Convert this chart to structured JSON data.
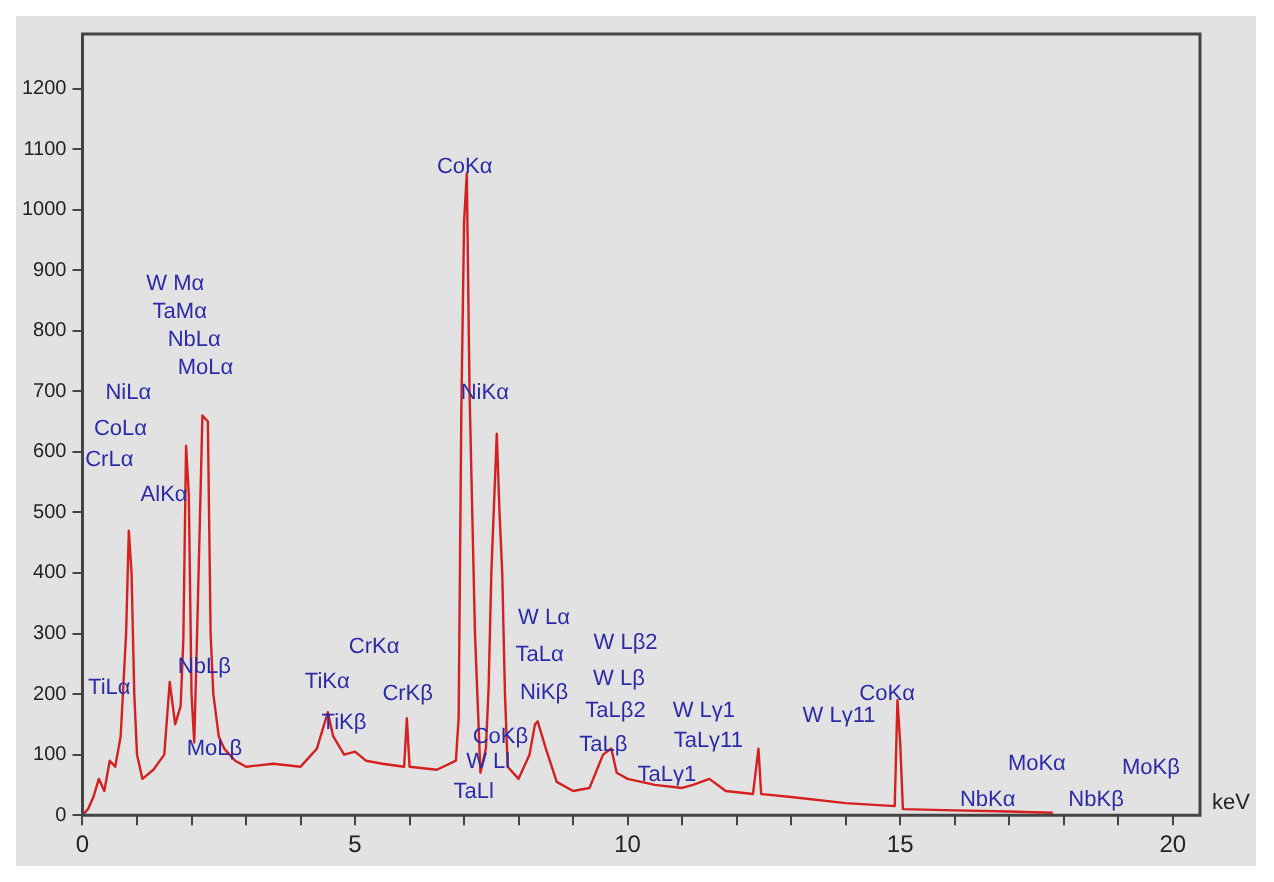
{
  "chart_data": {
    "type": "line",
    "xlabel": "keV",
    "xlim": [
      0,
      20.5
    ],
    "ylim": [
      0,
      1290
    ],
    "xticks": [
      0,
      {
        "value": 1,
        "label": null
      },
      {
        "value": 2,
        "label": null
      },
      {
        "value": 3,
        "label": null
      },
      {
        "value": 4,
        "label": null
      },
      5,
      {
        "value": 6,
        "label": null
      },
      {
        "value": 7,
        "label": null
      },
      {
        "value": 8,
        "label": null
      },
      {
        "value": 9,
        "label": null
      },
      10,
      {
        "value": 11,
        "label": null
      },
      {
        "value": 12,
        "label": null
      },
      {
        "value": 13,
        "label": null
      },
      {
        "value": 14,
        "label": null
      },
      15,
      {
        "value": 16,
        "label": null
      },
      {
        "value": 17,
        "label": null
      },
      {
        "value": 18,
        "label": null
      },
      {
        "value": 19,
        "label": null
      },
      20
    ],
    "yticks": [
      0,
      100,
      200,
      300,
      400,
      500,
      600,
      700,
      800,
      900,
      1000,
      1100,
      1200
    ],
    "grid": false,
    "legend": false,
    "marker": "none",
    "series": [
      {
        "color": "#d42020",
        "x": [
          0,
          0.1,
          0.2,
          0.3,
          0.4,
          0.5,
          0.6,
          0.7,
          0.8,
          0.85,
          0.9,
          0.95,
          1.0,
          1.1,
          1.3,
          1.5,
          1.6,
          1.7,
          1.8,
          1.85,
          1.9,
          1.95,
          2.0,
          2.05,
          2.1,
          2.2,
          2.3,
          2.35,
          2.4,
          2.5,
          2.6,
          2.8,
          3.0,
          3.5,
          4.0,
          4.3,
          4.5,
          4.6,
          4.8,
          5.0,
          5.2,
          5.5,
          5.9,
          5.95,
          6.0,
          6.5,
          6.85,
          6.9,
          6.95,
          7.0,
          7.05,
          7.1,
          7.2,
          7.3,
          7.4,
          7.45,
          7.5,
          7.6,
          7.65,
          7.7,
          7.75,
          7.8,
          8.0,
          8.2,
          8.3,
          8.35,
          8.5,
          8.7,
          9.0,
          9.3,
          9.55,
          9.7,
          9.8,
          10.0,
          10.5,
          11.0,
          11.2,
          11.5,
          11.8,
          12.3,
          12.4,
          12.45,
          13.0,
          14.0,
          14.9,
          14.95,
          15.0,
          15.05,
          16.0,
          17.0,
          17.8
        ],
        "values": [
          0,
          10,
          30,
          60,
          40,
          90,
          80,
          130,
          300,
          470,
          400,
          200,
          100,
          60,
          75,
          100,
          220,
          150,
          180,
          290,
          610,
          530,
          200,
          120,
          290,
          660,
          650,
          300,
          200,
          130,
          110,
          90,
          80,
          85,
          80,
          110,
          170,
          130,
          100,
          105,
          90,
          85,
          80,
          160,
          80,
          75,
          90,
          160,
          670,
          980,
          1060,
          700,
          300,
          70,
          110,
          210,
          400,
          630,
          500,
          400,
          200,
          80,
          60,
          100,
          150,
          155,
          110,
          55,
          40,
          45,
          100,
          110,
          70,
          60,
          50,
          45,
          50,
          60,
          40,
          35,
          110,
          35,
          30,
          20,
          15,
          190,
          120,
          10,
          8,
          6,
          4
        ]
      }
    ],
    "annotations": [
      "CoKα",
      "W Mα",
      "TaMα",
      "NbLα",
      "MoLα",
      "NiLα",
      "CoLα",
      "CrLα",
      "AlKα",
      "NiKα",
      "TiLα",
      "NbLβ",
      "MoLβ",
      "TiKα",
      "TiKβ",
      "CrKα",
      "CrKβ",
      "CoKβ",
      "W Ll",
      "TaLl",
      "W Lα",
      "TaLα",
      "NiKβ",
      "W Lβ2",
      "W Lβ",
      "TaLβ2",
      "TaLβ",
      "W Lγ1",
      "TaLγ11",
      "TaLγ1",
      "W Lγ11",
      "CoKα",
      "NbKα",
      "MoKα",
      "NbKβ",
      "MoKβ"
    ]
  }
}
